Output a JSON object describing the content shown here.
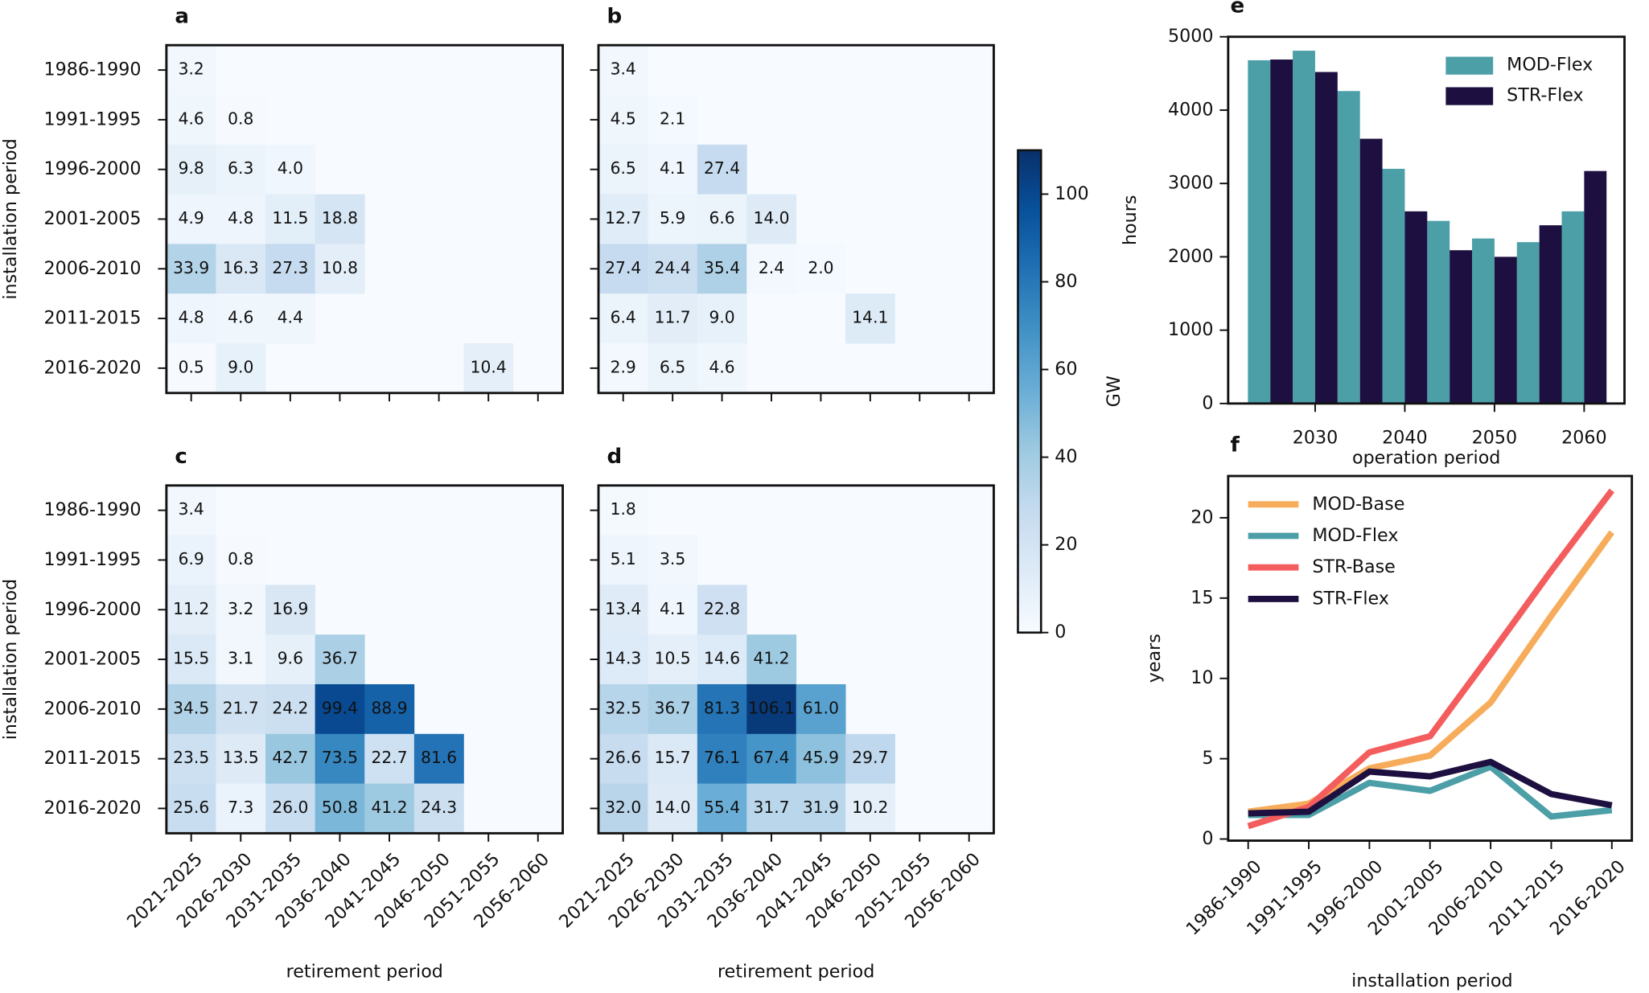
{
  "chart_data": [
    {
      "type": "heatmap",
      "panel": "a",
      "ylabel": "installation period",
      "rows": [
        "1986-1990",
        "1991-1995",
        "1996-2000",
        "2001-2005",
        "2006-2010",
        "2011-2015",
        "2016-2020"
      ],
      "values": [
        [
          3.2,
          null,
          null,
          null,
          null,
          null,
          null,
          null
        ],
        [
          4.6,
          0.8,
          null,
          null,
          null,
          null,
          null,
          null
        ],
        [
          9.8,
          6.3,
          4.0,
          null,
          null,
          null,
          null,
          null
        ],
        [
          4.9,
          4.8,
          11.5,
          18.8,
          null,
          null,
          null,
          null
        ],
        [
          33.9,
          16.3,
          27.3,
          10.8,
          null,
          null,
          null,
          null
        ],
        [
          4.8,
          4.6,
          4.4,
          null,
          null,
          null,
          null,
          null
        ],
        [
          0.5,
          9.0,
          null,
          null,
          null,
          null,
          10.4,
          null
        ]
      ],
      "value_labels": [
        [
          "3.2",
          null,
          null,
          null,
          null,
          null,
          null,
          null
        ],
        [
          "4.6",
          "0.8",
          null,
          null,
          null,
          null,
          null,
          null
        ],
        [
          "9.8",
          "6.3",
          "4.0",
          null,
          null,
          null,
          null,
          null
        ],
        [
          "4.9",
          "4.8",
          "11.5",
          "18.8",
          null,
          null,
          null,
          null
        ],
        [
          "33.9",
          "16.3",
          "27.3",
          "10.8",
          null,
          null,
          null,
          null
        ],
        [
          "4.8",
          "4.6",
          "4.4",
          null,
          null,
          null,
          null,
          null
        ],
        [
          "0.5",
          "9.0",
          null,
          null,
          null,
          null,
          "10.4",
          null
        ]
      ]
    },
    {
      "type": "heatmap",
      "panel": "b",
      "values": [
        [
          3.4,
          null,
          null,
          null,
          null,
          null,
          null,
          null
        ],
        [
          4.5,
          2.1,
          null,
          null,
          null,
          null,
          null,
          null
        ],
        [
          6.5,
          4.1,
          27.4,
          null,
          null,
          null,
          null,
          null
        ],
        [
          12.7,
          5.9,
          6.6,
          14.0,
          null,
          null,
          null,
          null
        ],
        [
          27.4,
          24.4,
          35.4,
          2.4,
          2.0,
          null,
          null,
          null
        ],
        [
          6.4,
          11.7,
          9.0,
          null,
          null,
          14.1,
          null,
          null
        ],
        [
          2.9,
          6.5,
          4.6,
          null,
          null,
          null,
          null,
          null
        ]
      ],
      "value_labels": [
        [
          "3.4",
          null,
          null,
          null,
          null,
          null,
          null,
          null
        ],
        [
          "4.5",
          "2.1",
          null,
          null,
          null,
          null,
          null,
          null
        ],
        [
          "6.5",
          "4.1",
          "27.4",
          null,
          null,
          null,
          null,
          null
        ],
        [
          "12.7",
          "5.9",
          "6.6",
          "14.0",
          null,
          null,
          null,
          null
        ],
        [
          "27.4",
          "24.4",
          "35.4",
          "2.4",
          "2.0",
          null,
          null,
          null
        ],
        [
          "6.4",
          "11.7",
          "9.0",
          null,
          null,
          "14.1",
          null,
          null
        ],
        [
          "2.9",
          "6.5",
          "4.6",
          null,
          null,
          null,
          null,
          null
        ]
      ]
    },
    {
      "type": "heatmap",
      "panel": "c",
      "ylabel": "installation period",
      "xlabel": "retirement period",
      "rows": [
        "1986-1990",
        "1991-1995",
        "1996-2000",
        "2001-2005",
        "2006-2010",
        "2011-2015",
        "2016-2020"
      ],
      "columns": [
        "2021-2025",
        "2026-2030",
        "2031-2035",
        "2036-2040",
        "2041-2045",
        "2046-2050",
        "2051-2055",
        "2056-2060"
      ],
      "values": [
        [
          3.4,
          null,
          null,
          null,
          null,
          null,
          null,
          null
        ],
        [
          6.9,
          0.8,
          null,
          null,
          null,
          null,
          null,
          null
        ],
        [
          11.2,
          3.2,
          16.9,
          null,
          null,
          null,
          null,
          null
        ],
        [
          15.5,
          3.1,
          9.6,
          36.7,
          null,
          null,
          null,
          null
        ],
        [
          34.5,
          21.7,
          24.2,
          99.4,
          88.9,
          null,
          null,
          null
        ],
        [
          23.5,
          13.5,
          42.7,
          73.5,
          22.7,
          81.6,
          null,
          null
        ],
        [
          25.6,
          7.3,
          26.0,
          50.8,
          41.2,
          24.3,
          null,
          null
        ]
      ],
      "value_labels": [
        [
          "3.4",
          null,
          null,
          null,
          null,
          null,
          null,
          null
        ],
        [
          "6.9",
          "0.8",
          null,
          null,
          null,
          null,
          null,
          null
        ],
        [
          "11.2",
          "3.2",
          "16.9",
          null,
          null,
          null,
          null,
          null
        ],
        [
          "15.5",
          "3.1",
          "9.6",
          "36.7",
          null,
          null,
          null,
          null
        ],
        [
          "34.5",
          "21.7",
          "24.2",
          "99.4",
          "88.9",
          null,
          null,
          null
        ],
        [
          "23.5",
          "13.5",
          "42.7",
          "73.5",
          "22.7",
          "81.6",
          null,
          null
        ],
        [
          "25.6",
          "7.3",
          "26.0",
          "50.8",
          "41.2",
          "24.3",
          null,
          null
        ]
      ]
    },
    {
      "type": "heatmap",
      "panel": "d",
      "xlabel": "retirement period",
      "columns": [
        "2021-2025",
        "2026-2030",
        "2031-2035",
        "2036-2040",
        "2041-2045",
        "2046-2050",
        "2051-2055",
        "2056-2060"
      ],
      "values": [
        [
          1.8,
          null,
          null,
          null,
          null,
          null,
          null,
          null
        ],
        [
          5.1,
          3.5,
          null,
          null,
          null,
          null,
          null,
          null
        ],
        [
          13.4,
          4.1,
          22.8,
          null,
          null,
          null,
          null,
          null
        ],
        [
          14.3,
          10.5,
          14.6,
          41.2,
          null,
          null,
          null,
          null
        ],
        [
          32.5,
          36.7,
          81.3,
          106.1,
          61.0,
          null,
          null,
          null
        ],
        [
          26.6,
          15.7,
          76.1,
          67.4,
          45.9,
          29.7,
          null,
          null
        ],
        [
          32.0,
          14.0,
          55.4,
          31.7,
          31.9,
          10.2,
          null,
          null
        ]
      ],
      "value_labels": [
        [
          "1.8",
          null,
          null,
          null,
          null,
          null,
          null,
          null
        ],
        [
          "5.1",
          "3.5",
          null,
          null,
          null,
          null,
          null,
          null
        ],
        [
          "13.4",
          "4.1",
          "22.8",
          null,
          null,
          null,
          null,
          null
        ],
        [
          "14.3",
          "10.5",
          "14.6",
          "41.2",
          null,
          null,
          null,
          null
        ],
        [
          "32.5",
          "36.7",
          "81.3",
          "106.1",
          "61.0",
          null,
          null,
          null
        ],
        [
          "26.6",
          "15.7",
          "76.1",
          "67.4",
          "45.9",
          "29.7",
          null,
          null
        ],
        [
          "32.0",
          "14.0",
          "55.4",
          "31.7",
          "31.9",
          "10.2",
          null,
          null
        ]
      ]
    },
    {
      "type": "colorbar",
      "label": "GW",
      "ylim": [
        0,
        110
      ],
      "yticks": [
        0,
        20,
        40,
        60,
        80,
        100
      ]
    },
    {
      "type": "bar",
      "panel": "e",
      "x": [
        2025,
        2030,
        2035,
        2040,
        2045,
        2050,
        2055,
        2060
      ],
      "series": [
        {
          "name": "MOD-Flex",
          "color": "#4c9fa7",
          "values": [
            4680,
            4810,
            4260,
            3200,
            2490,
            2250,
            2200,
            2620
          ]
        },
        {
          "name": "STR-Flex",
          "color": "#1d1040",
          "values": [
            4690,
            4520,
            3610,
            2620,
            2090,
            2000,
            2430,
            3170
          ]
        }
      ],
      "xlim": [
        2020.3,
        2064.5
      ],
      "xticks": [
        2030,
        2040,
        2050,
        2060
      ],
      "ylim": [
        0,
        5000
      ],
      "yticks": [
        0,
        1000,
        2000,
        3000,
        4000,
        5000
      ],
      "xlabel": "operation period",
      "ylabel": "hours",
      "legend": "upper right"
    },
    {
      "type": "line",
      "panel": "f",
      "categories": [
        "1986-1990",
        "1991-1995",
        "1996-2000",
        "2001-2005",
        "2006-2010",
        "2011-2015",
        "2016-2020"
      ],
      "series": [
        {
          "name": "MOD-Base",
          "color": "#f6ac5a",
          "values": [
            1.7,
            2.2,
            4.4,
            5.2,
            8.5,
            13.9,
            19.1
          ]
        },
        {
          "name": "MOD-Flex",
          "color": "#4c9fa7",
          "values": [
            1.5,
            1.5,
            3.5,
            3.0,
            4.5,
            1.4,
            1.8
          ]
        },
        {
          "name": "STR-Base",
          "color": "#f45d5d",
          "values": [
            0.8,
            2.0,
            5.4,
            6.4,
            11.5,
            16.7,
            21.7
          ]
        },
        {
          "name": "STR-Flex",
          "color": "#1d1040",
          "values": [
            1.6,
            1.7,
            4.2,
            3.9,
            4.8,
            2.8,
            2.1
          ]
        }
      ],
      "ylim": [
        -0.1,
        22.6
      ],
      "yticks": [
        0,
        5,
        10,
        15,
        20
      ],
      "xlabel": "installation period",
      "ylabel": "years",
      "legend": "upper left"
    }
  ]
}
